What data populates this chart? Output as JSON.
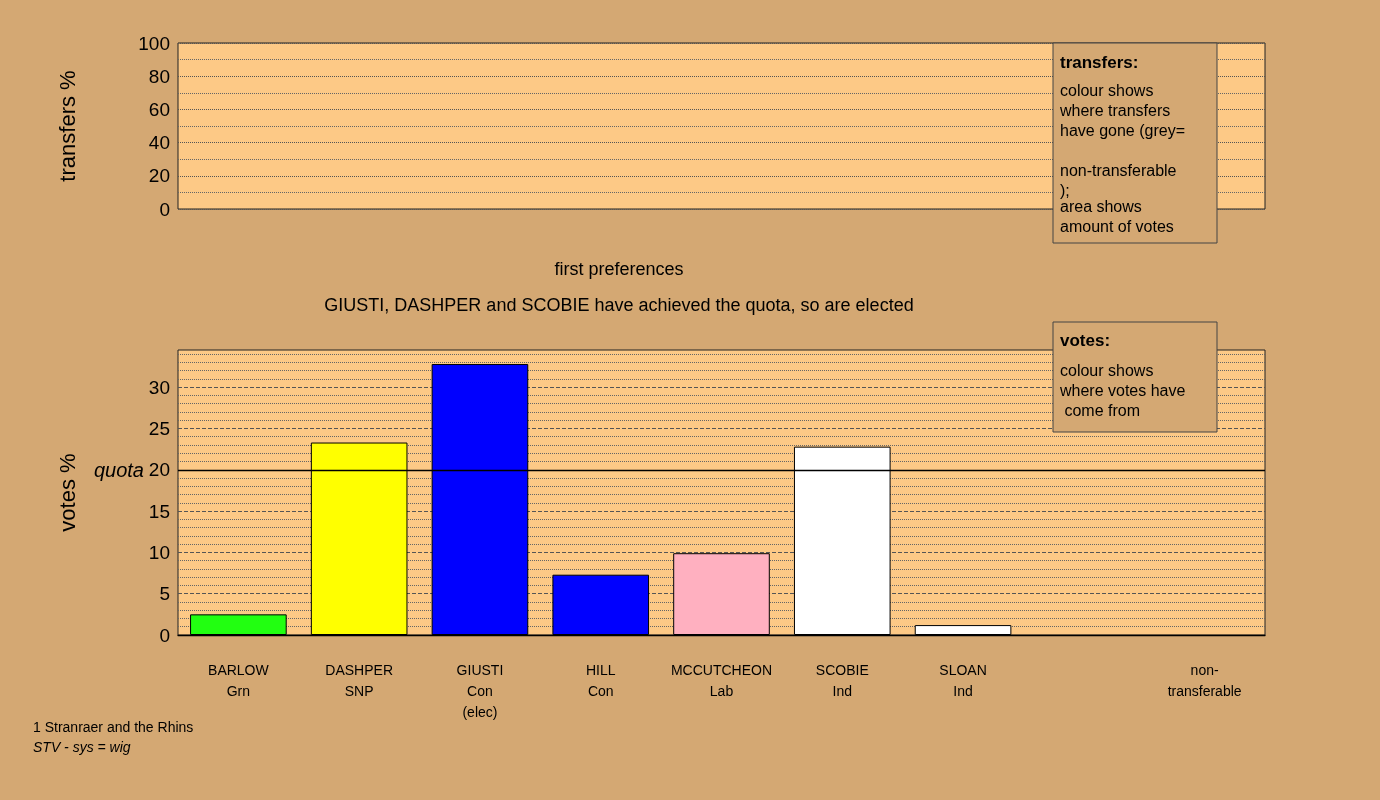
{
  "chart_data": [
    {
      "type": "bar",
      "ylabel": "transfers %",
      "categories": [
        "BARLOW\nGrn",
        "DASHPER\nSNP",
        "GIUSTI\nCon\n(elec)",
        "HILL\nCon",
        "MCCUTCHEON\nLab",
        "SCOBIE\nInd",
        "SLOAN\nInd",
        null,
        "non-transferable"
      ],
      "values": [
        null,
        null,
        null,
        null,
        null,
        null,
        null,
        null,
        null
      ],
      "ylim": [
        0,
        100
      ],
      "yticks": [
        0,
        20,
        40,
        60,
        80,
        100
      ],
      "grid": true,
      "tick_labels": "y",
      "annotations": [
        "transfers:",
        "colour shows where transfers have gone (grey= non-transferable);",
        "area shows amount of votes"
      ]
    },
    {
      "type": "bar",
      "title": "first preferences",
      "subtitle": "GIUSTI, DASHPER and SCOBIE have achieved the quota, so are elected",
      "ylabel": "votes %",
      "categories": [
        "BARLOW\nGrn",
        "DASHPER\nSNP",
        "GIUSTI\nCon\n(elec)",
        "HILL\nCon",
        "MCCUTCHEON\nLab",
        "SCOBIE\nInd",
        "SLOAN\nInd",
        null,
        "non-transferable"
      ],
      "values": [
        2.5,
        23.3,
        32.8,
        7.3,
        9.9,
        22.8,
        1.2,
        null,
        null
      ],
      "colors": [
        "#22ff11",
        "#ffff00",
        "#0000ff",
        "#0000ff",
        "#ffb0c0",
        "#ffffff",
        "#ffffff",
        "#ffffff",
        "#aaaaaa"
      ],
      "ylim": [
        0,
        34.5
      ],
      "yticks": [
        0,
        5,
        10,
        15,
        20,
        25,
        30
      ],
      "grid": true,
      "ref_lines": [
        {
          "axis": "y",
          "value": 20,
          "label": "quota"
        }
      ],
      "annotations": [
        "votes:",
        "colour shows where votes have come from",
        "1 Stranraer and the Rhins",
        "STV - sys = wig"
      ]
    }
  ]
}
